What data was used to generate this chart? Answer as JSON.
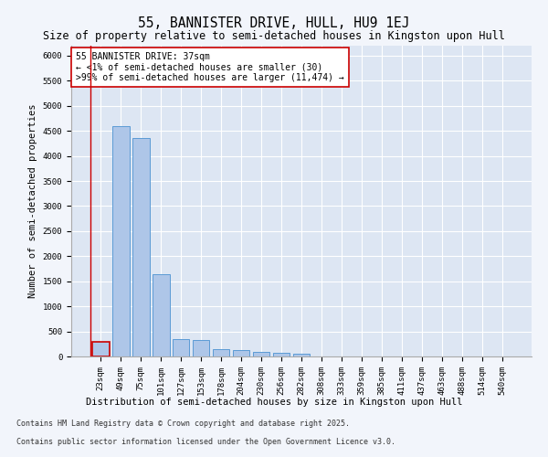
{
  "title": "55, BANNISTER DRIVE, HULL, HU9 1EJ",
  "subtitle": "Size of property relative to semi-detached houses in Kingston upon Hull",
  "xlabel": "Distribution of semi-detached houses by size in Kingston upon Hull",
  "ylabel": "Number of semi-detached properties",
  "categories": [
    "23sqm",
    "49sqm",
    "75sqm",
    "101sqm",
    "127sqm",
    "153sqm",
    "178sqm",
    "204sqm",
    "230sqm",
    "256sqm",
    "282sqm",
    "308sqm",
    "333sqm",
    "359sqm",
    "385sqm",
    "411sqm",
    "437sqm",
    "463sqm",
    "488sqm",
    "514sqm",
    "540sqm"
  ],
  "values": [
    300,
    4600,
    4350,
    1650,
    340,
    320,
    150,
    130,
    90,
    70,
    60,
    0,
    0,
    0,
    0,
    0,
    0,
    0,
    0,
    0,
    0
  ],
  "bar_color": "#aec6e8",
  "bar_edge_color": "#5b9bd5",
  "highlight_bar_index": 0,
  "highlight_edge_color": "#cc0000",
  "annotation_box_text": "55 BANNISTER DRIVE: 37sqm\n← <1% of semi-detached houses are smaller (30)\n>99% of semi-detached houses are larger (11,474) →",
  "annotation_box_color": "#ffffff",
  "annotation_box_edge_color": "#cc0000",
  "ylim": [
    0,
    6200
  ],
  "yticks": [
    0,
    500,
    1000,
    1500,
    2000,
    2500,
    3000,
    3500,
    4000,
    4500,
    5000,
    5500,
    6000
  ],
  "footer_line1": "Contains HM Land Registry data © Crown copyright and database right 2025.",
  "footer_line2": "Contains public sector information licensed under the Open Government Licence v3.0.",
  "bg_color": "#f2f5fb",
  "plot_bg_color": "#dde6f3",
  "grid_color": "#ffffff",
  "title_fontsize": 10.5,
  "subtitle_fontsize": 8.5,
  "axis_label_fontsize": 7.5,
  "tick_fontsize": 6.5,
  "annotation_fontsize": 7,
  "footer_fontsize": 6
}
